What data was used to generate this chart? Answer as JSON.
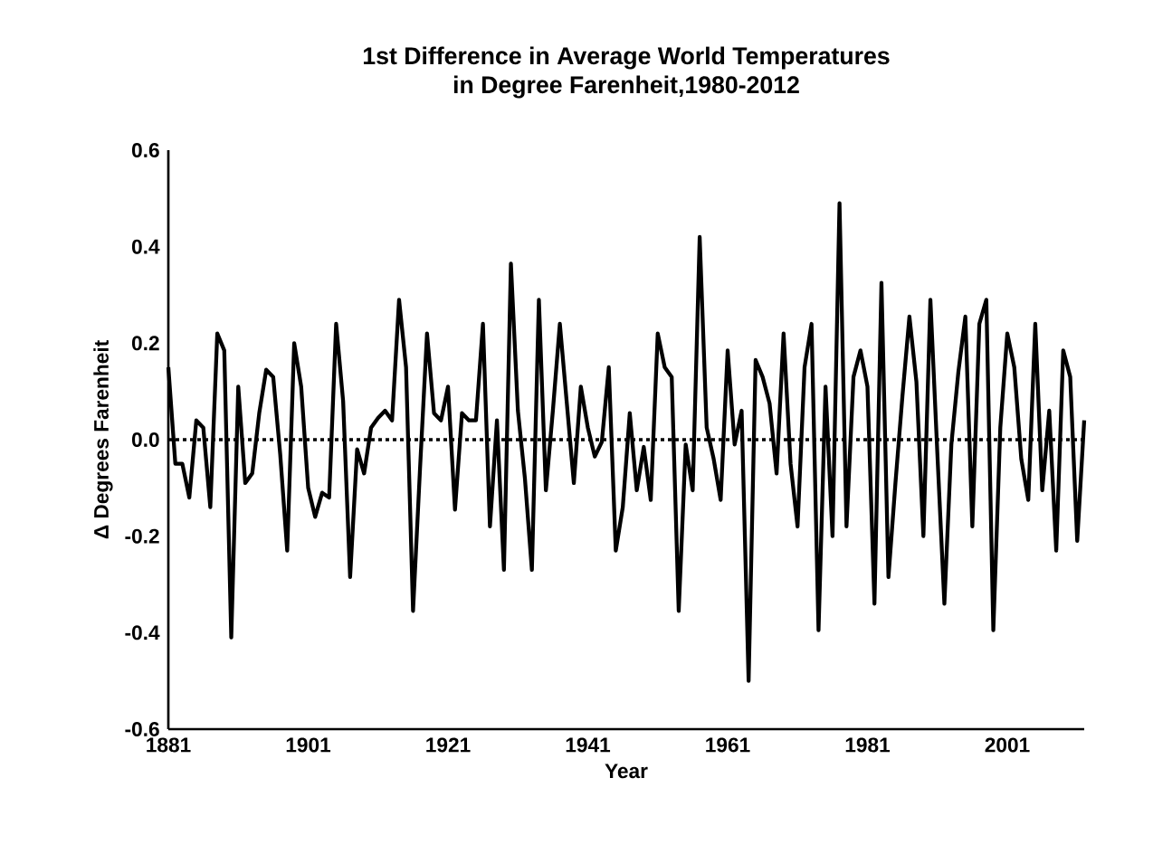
{
  "chart_data": {
    "type": "line",
    "title": "1st Difference in Average World Temperatures\nin Degree Farenheit,1980-2012",
    "xlabel": "Year",
    "ylabel": "Δ Degrees Farenheit",
    "x": [
      1881,
      1882,
      1883,
      1884,
      1885,
      1886,
      1887,
      1888,
      1889,
      1890,
      1891,
      1892,
      1893,
      1894,
      1895,
      1896,
      1897,
      1898,
      1899,
      1900,
      1901,
      1902,
      1903,
      1904,
      1905,
      1906,
      1907,
      1908,
      1909,
      1910,
      1911,
      1912,
      1913,
      1914,
      1915,
      1916,
      1917,
      1918,
      1919,
      1920,
      1921,
      1922,
      1923,
      1924,
      1925,
      1926,
      1927,
      1928,
      1929,
      1930,
      1931,
      1932,
      1933,
      1934,
      1935,
      1936,
      1937,
      1938,
      1939,
      1940,
      1941,
      1942,
      1943,
      1944,
      1945,
      1946,
      1947,
      1948,
      1949,
      1950,
      1951,
      1952,
      1953,
      1954,
      1955,
      1956,
      1957,
      1958,
      1959,
      1960,
      1961,
      1962,
      1963,
      1964,
      1965,
      1966,
      1967,
      1968,
      1969,
      1970,
      1971,
      1972,
      1973,
      1974,
      1975,
      1976,
      1977,
      1978,
      1979,
      1980,
      1981,
      1982,
      1983,
      1984,
      1985,
      1986,
      1987,
      1988,
      1989,
      1990,
      1991,
      1992,
      1993,
      1994,
      1995,
      1996,
      1997,
      1998,
      1999,
      2000,
      2001,
      2002,
      2003,
      2004,
      2005,
      2006,
      2007,
      2008,
      2009,
      2010,
      2011,
      2012
    ],
    "series": [
      {
        "color": "#000000",
        "values": [
          0.15,
          -0.05,
          -0.05,
          -0.12,
          0.04,
          0.025,
          -0.14,
          0.22,
          0.185,
          -0.41,
          0.11,
          -0.09,
          -0.07,
          0.055,
          0.145,
          0.13,
          -0.03,
          -0.23,
          0.2,
          0.11,
          -0.1,
          -0.16,
          -0.11,
          -0.12,
          0.24,
          0.08,
          -0.285,
          -0.02,
          -0.07,
          0.025,
          0.045,
          0.06,
          0.04,
          0.29,
          0.15,
          -0.355,
          -0.06,
          0.22,
          0.055,
          0.04,
          0.11,
          -0.145,
          0.055,
          0.04,
          0.04,
          0.24,
          -0.18,
          0.04,
          -0.27,
          0.365,
          0.06,
          -0.08,
          -0.27,
          0.29,
          -0.105,
          0.06,
          0.24,
          0.075,
          -0.09,
          0.11,
          0.025,
          -0.035,
          -0.005,
          0.15,
          -0.23,
          -0.14,
          0.055,
          -0.105,
          -0.015,
          -0.125,
          0.22,
          0.15,
          0.13,
          -0.355,
          -0.01,
          -0.105,
          0.42,
          0.025,
          -0.04,
          -0.125,
          0.185,
          -0.01,
          0.06,
          -0.5,
          0.165,
          0.13,
          0.075,
          -0.07,
          0.22,
          -0.05,
          -0.18,
          0.15,
          0.24,
          -0.395,
          0.11,
          -0.2,
          0.49,
          -0.18,
          0.13,
          0.185,
          0.11,
          -0.34,
          0.325,
          -0.285,
          -0.09,
          0.09,
          0.255,
          0.12,
          -0.2,
          0.29,
          -0.03,
          -0.34,
          -0.01,
          0.14,
          0.255,
          -0.18,
          0.24,
          0.29,
          -0.395,
          0.025,
          0.22,
          0.15,
          -0.04,
          -0.125,
          0.24,
          -0.105,
          0.06,
          -0.23,
          0.185,
          0.13,
          -0.21,
          0.04
        ]
      }
    ],
    "xlim": [
      1881,
      2012
    ],
    "xticks": [
      1881,
      1901,
      1921,
      1941,
      1961,
      1981,
      2001
    ],
    "ylim": [
      -0.6,
      0.6
    ],
    "yticks": [
      -0.6,
      -0.4,
      -0.2,
      {
        "value": 0,
        "label": "0.0"
      },
      0.2,
      0.4,
      0.6
    ],
    "ref_lines": [
      {
        "axis": "y",
        "value": 0,
        "color": "#000000",
        "line_style": "dotted"
      }
    ],
    "grid": false,
    "marker": "none",
    "line_style": "solid"
  }
}
